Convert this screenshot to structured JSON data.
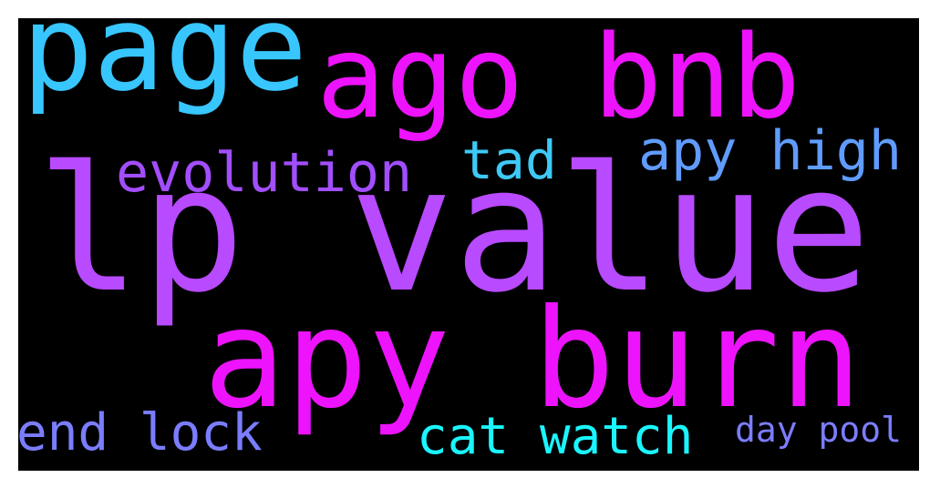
{
  "wordcloud": {
    "words": [
      {
        "text": "lp value",
        "color": "#b84aff"
      },
      {
        "text": "apy burn",
        "color": "#ee13fd"
      },
      {
        "text": "ago bnb",
        "color": "#ee13fd"
      },
      {
        "text": "page",
        "color": "#38c6ff"
      },
      {
        "text": "evolution",
        "color": "#a24eff"
      },
      {
        "text": "tad",
        "color": "#3ec9f6"
      },
      {
        "text": "apy high",
        "color": "#609cff"
      },
      {
        "text": "end lock",
        "color": "#7b7dff"
      },
      {
        "text": "cat watch",
        "color": "#1af5ff"
      },
      {
        "text": "day pool",
        "color": "#7c7dff"
      }
    ]
  }
}
